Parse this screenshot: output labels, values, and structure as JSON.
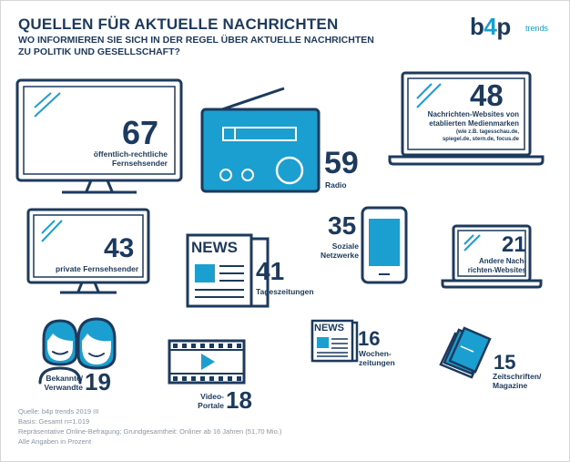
{
  "header": {
    "title": "QUELLEN FÜR AKTUELLE NACHRICHTEN",
    "subtitle_line1": "WO INFORMIEREN SIE SICH IN DER REGEL ÜBER AKTUELLE NACHRICHTEN",
    "subtitle_line2": "ZU POLITIK UND GESELLSCHAFT?"
  },
  "logo": {
    "main_pre": "b",
    "main_four": "4",
    "main_post": "p",
    "sub": "trends"
  },
  "chart_data": {
    "type": "infographic",
    "title": "QUELLEN FÜR AKTUELLE NACHRICHTEN",
    "unit": "Prozent",
    "items": [
      {
        "label": "öffentlich-rechtliche Fernsehsender",
        "value": 67
      },
      {
        "label": "Radio",
        "value": 59
      },
      {
        "label": "Nachrichten-Websites von etablierten Medienmarken",
        "value": 48,
        "note": "(wie z.B. tagesschau.de, spiegel.de, stern.de, focus.de)"
      },
      {
        "label": "private Fernsehsender",
        "value": 43
      },
      {
        "label": "Tageszeitungen",
        "value": 41
      },
      {
        "label": "Soziale Netzwerke",
        "value": 35
      },
      {
        "label": "Andere Nachrichten-Websites",
        "value": 21
      },
      {
        "label": "Bekannte/ Verwandte",
        "value": 19
      },
      {
        "label": "Video-Portale",
        "value": 18
      },
      {
        "label": "Wochenzeitungen",
        "value": 16
      },
      {
        "label": "Zeitschriften/ Magazine",
        "value": 15
      }
    ]
  },
  "labels": {
    "oerr_1": "öffentlich-rechtliche",
    "oerr_2": "Fernsehsender",
    "radio": "Radio",
    "web_1": "Nachrichten-Websites von",
    "web_2": "etablierten Medienmarken",
    "web_note_1": "(wie z.B. tagesschau.de,",
    "web_note_2": "spiegel.de, stern.de, focus.de",
    "priv": "private Fernsehsender",
    "tz": "Tageszeitungen",
    "sn_1": "Soziale",
    "sn_2": "Netzwerke",
    "andere_1": "Andere Nach-",
    "andere_2": "richten-Websites",
    "bek_1": "Bekannte/",
    "bek_2": "Verwandte",
    "vid_1": "Video-",
    "vid_2": "Portale",
    "woch_1": "Wochen-",
    "woch_2": "zeitungen",
    "zeit_1": "Zeitschriften/",
    "zeit_2": "Magazine",
    "news_big": "NEWS",
    "news_small": "NEWS"
  },
  "source": {
    "line1": "Quelle: b4p trends 2019 III",
    "line2": "Basis: Gesamt n=1.019",
    "line3": "Repräsentative Online-Befragung; Grundgesamtheit: Onliner ab 16 Jahren (51,70 Mio.)",
    "line4": "Alle Angaben in Prozent"
  },
  "colors": {
    "navy": "#1c3a5e",
    "blue": "#1a9fd0",
    "grey": "#8a95a3"
  }
}
